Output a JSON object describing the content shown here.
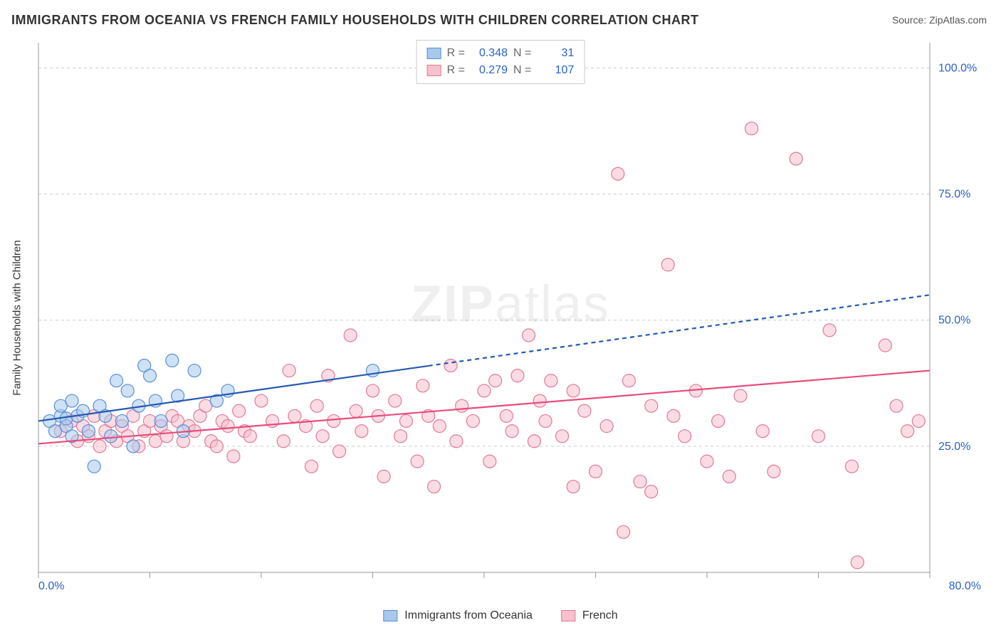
{
  "title": "IMMIGRANTS FROM OCEANIA VS FRENCH FAMILY HOUSEHOLDS WITH CHILDREN CORRELATION CHART",
  "source_prefix": "Source: ",
  "source_name": "ZipAtlas.com",
  "ylabel": "Family Households with Children",
  "watermark_bold": "ZIP",
  "watermark_rest": "atlas",
  "correlation_legend": {
    "rows": [
      {
        "swatch_fill": "#a8c8ec",
        "swatch_border": "#5a8fd6",
        "r_label": "R =",
        "r_value": "0.348",
        "n_label": "N =",
        "n_value": "31"
      },
      {
        "swatch_fill": "#f7c0cd",
        "swatch_border": "#e07a96",
        "r_label": "R =",
        "r_value": "0.279",
        "n_label": "N =",
        "n_value": "107"
      }
    ]
  },
  "series_legend": {
    "items": [
      {
        "swatch_fill": "#a8c8ec",
        "swatch_border": "#5a8fd6",
        "label": "Immigrants from Oceania"
      },
      {
        "swatch_fill": "#f7c0cd",
        "swatch_border": "#e07a96",
        "label": "French"
      }
    ]
  },
  "chart": {
    "type": "scatter",
    "background_color": "#ffffff",
    "grid_color": "#cccccc",
    "axis_color": "#999999",
    "label_color": "#2962c4",
    "xlim": [
      0,
      80
    ],
    "ylim": [
      0,
      105
    ],
    "x_ticks": [
      0,
      10,
      20,
      30,
      40,
      50,
      60,
      70,
      80
    ],
    "x_tick_labels": {
      "0": "0.0%",
      "80": "80.0%"
    },
    "y_gridlines": [
      25,
      50,
      75,
      100
    ],
    "y_tick_labels": {
      "25": "25.0%",
      "50": "50.0%",
      "75": "75.0%",
      "100": "100.0%"
    },
    "marker_radius": 9,
    "marker_opacity": 0.55,
    "series": [
      {
        "name": "oceania",
        "fill_color": "#a8c8ec",
        "stroke_color": "#5a8fd6",
        "trend": {
          "color": "#2458b3",
          "width": 2.2,
          "solid_to_x": 35,
          "y_at_x0": 30,
          "y_at_x80": 55
        },
        "points": [
          [
            1,
            30
          ],
          [
            1.5,
            28
          ],
          [
            2,
            31
          ],
          [
            2,
            33
          ],
          [
            2.5,
            29
          ],
          [
            2.5,
            30.5
          ],
          [
            3,
            27
          ],
          [
            3,
            34
          ],
          [
            3.5,
            31
          ],
          [
            4,
            32
          ],
          [
            4.5,
            28
          ],
          [
            5,
            21
          ],
          [
            5.5,
            33
          ],
          [
            6,
            31
          ],
          [
            6.5,
            27
          ],
          [
            7,
            38
          ],
          [
            7.5,
            30
          ],
          [
            8,
            36
          ],
          [
            8.5,
            25
          ],
          [
            9,
            33
          ],
          [
            9.5,
            41
          ],
          [
            10,
            39
          ],
          [
            10.5,
            34
          ],
          [
            11,
            30
          ],
          [
            12,
            42
          ],
          [
            12.5,
            35
          ],
          [
            13,
            28
          ],
          [
            14,
            40
          ],
          [
            16,
            34
          ],
          [
            17,
            36
          ],
          [
            30,
            40
          ]
        ]
      },
      {
        "name": "french",
        "fill_color": "#f7c0cd",
        "stroke_color": "#e07a96",
        "trend": {
          "color": "#e94b7a",
          "width": 2.2,
          "solid_to_x": 80,
          "y_at_x0": 25.5,
          "y_at_x80": 40
        },
        "points": [
          [
            2,
            28
          ],
          [
            3,
            30
          ],
          [
            3.5,
            26
          ],
          [
            4,
            29
          ],
          [
            4.5,
            27
          ],
          [
            5,
            31
          ],
          [
            5.5,
            25
          ],
          [
            6,
            28
          ],
          [
            6.5,
            30
          ],
          [
            7,
            26
          ],
          [
            7.5,
            29
          ],
          [
            8,
            27
          ],
          [
            8.5,
            31
          ],
          [
            9,
            25
          ],
          [
            9.5,
            28
          ],
          [
            10,
            30
          ],
          [
            10.5,
            26
          ],
          [
            11,
            29
          ],
          [
            11.5,
            27
          ],
          [
            12,
            31
          ],
          [
            12.5,
            30
          ],
          [
            13,
            26
          ],
          [
            13.5,
            29
          ],
          [
            14,
            28
          ],
          [
            14.5,
            31
          ],
          [
            15,
            33
          ],
          [
            15.5,
            26
          ],
          [
            16,
            25
          ],
          [
            16.5,
            30
          ],
          [
            17,
            29
          ],
          [
            17.5,
            23
          ],
          [
            18,
            32
          ],
          [
            18.5,
            28
          ],
          [
            19,
            27
          ],
          [
            20,
            34
          ],
          [
            21,
            30
          ],
          [
            22,
            26
          ],
          [
            22.5,
            40
          ],
          [
            23,
            31
          ],
          [
            24,
            29
          ],
          [
            24.5,
            21
          ],
          [
            25,
            33
          ],
          [
            25.5,
            27
          ],
          [
            26,
            39
          ],
          [
            26.5,
            30
          ],
          [
            27,
            24
          ],
          [
            28,
            47
          ],
          [
            28.5,
            32
          ],
          [
            29,
            28
          ],
          [
            30,
            36
          ],
          [
            30.5,
            31
          ],
          [
            31,
            19
          ],
          [
            32,
            34
          ],
          [
            32.5,
            27
          ],
          [
            33,
            30
          ],
          [
            34,
            22
          ],
          [
            34.5,
            37
          ],
          [
            35,
            31
          ],
          [
            35.5,
            17
          ],
          [
            36,
            29
          ],
          [
            37,
            41
          ],
          [
            37.5,
            26
          ],
          [
            38,
            33
          ],
          [
            39,
            30
          ],
          [
            40,
            36
          ],
          [
            40.5,
            22
          ],
          [
            41,
            38
          ],
          [
            42,
            31
          ],
          [
            42.5,
            28
          ],
          [
            43,
            39
          ],
          [
            44,
            47
          ],
          [
            44.5,
            26
          ],
          [
            45,
            34
          ],
          [
            45.5,
            30
          ],
          [
            46,
            38
          ],
          [
            47,
            27
          ],
          [
            48,
            36
          ],
          [
            49,
            32
          ],
          [
            50,
            20
          ],
          [
            51,
            29
          ],
          [
            52,
            79
          ],
          [
            52.5,
            8
          ],
          [
            53,
            38
          ],
          [
            54,
            18
          ],
          [
            55,
            33
          ],
          [
            56.5,
            61
          ],
          [
            57,
            31
          ],
          [
            58,
            27
          ],
          [
            59,
            36
          ],
          [
            60,
            22
          ],
          [
            61,
            30
          ],
          [
            62,
            19
          ],
          [
            63,
            35
          ],
          [
            64,
            88
          ],
          [
            65,
            28
          ],
          [
            66,
            20
          ],
          [
            68,
            82
          ],
          [
            70,
            27
          ],
          [
            71,
            48
          ],
          [
            73,
            21
          ],
          [
            73.5,
            2
          ],
          [
            76,
            45
          ],
          [
            77,
            33
          ],
          [
            78,
            28
          ],
          [
            79,
            30
          ],
          [
            55,
            16
          ],
          [
            48,
            17
          ]
        ]
      }
    ]
  }
}
